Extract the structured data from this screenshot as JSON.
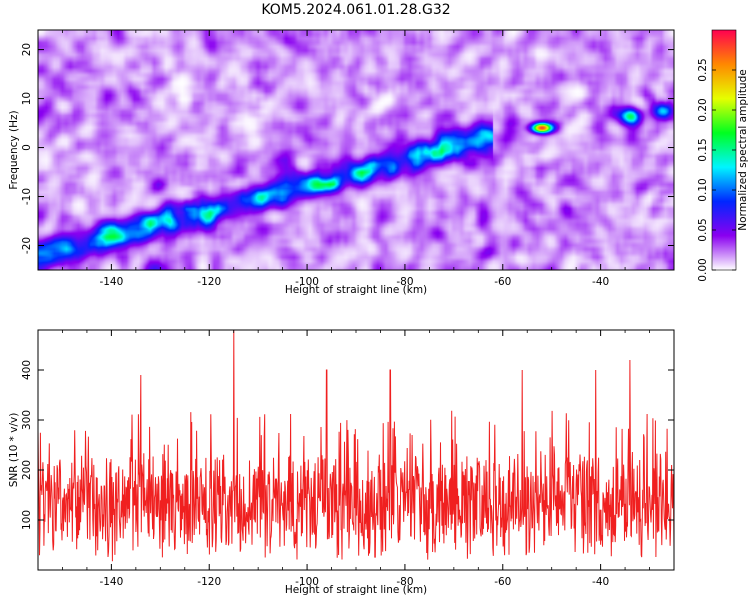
{
  "title": "KOM5.2024.061.01.28.G32",
  "chart_data": [
    {
      "type": "heatmap",
      "xlabel": "Height of straight line (km)",
      "ylabel": "Frequency (Hz)",
      "xlim": [
        -155,
        -25
      ],
      "ylim": [
        -25,
        24
      ],
      "xticks": [
        -140,
        -120,
        -100,
        -80,
        -60,
        -40
      ],
      "yticks": [
        -20,
        -10,
        0,
        10,
        20
      ],
      "colorbar": {
        "label": "Normalized spectral amplitude",
        "range": [
          0.0,
          0.3
        ],
        "ticks": [
          0.0,
          0.05,
          0.1,
          0.15,
          0.2,
          0.25
        ],
        "tick_labels": [
          "0.00",
          "0.05",
          "0.10",
          "0.15",
          "0.20",
          "0.25"
        ],
        "colors": [
          "#ffffff",
          "#8a00f0",
          "#0026ff",
          "#00f5ff",
          "#00ff20",
          "#e6ff00",
          "#ff8800",
          "#ff0050"
        ]
      },
      "features": {
        "diagonal_ridge": {
          "from": [
            -155,
            -22
          ],
          "to": [
            -65,
            1.5
          ],
          "peak_amplitude": 0.18
        },
        "isolated_peak": {
          "x": -52,
          "y": 4,
          "amplitude": 0.27
        },
        "right_blobs": [
          {
            "x": -34,
            "y": 6.5,
            "amplitude": 0.16
          },
          {
            "x": -27,
            "y": 7.5,
            "amplitude": 0.12
          }
        ],
        "background_amplitude_range": [
          0.0,
          0.06
        ]
      }
    },
    {
      "type": "line",
      "xlabel": "Height of straight line (km)",
      "ylabel": "SNR (10 * v/v)",
      "xlim": [
        -155,
        -25
      ],
      "ylim": [
        0,
        480
      ],
      "xticks": [
        -140,
        -120,
        -100,
        -80,
        -60,
        -40
      ],
      "yticks": [
        100,
        200,
        300,
        400
      ],
      "line_color": "#f02020",
      "series_summary": {
        "baseline": 130,
        "typical_max": 300,
        "max": {
          "x": -115,
          "y": 480
        },
        "notable_peaks": [
          {
            "x": -134,
            "y": 390
          },
          {
            "x": -96,
            "y": 400
          },
          {
            "x": -83,
            "y": 400
          },
          {
            "x": -56,
            "y": 400
          },
          {
            "x": -41,
            "y": 400
          },
          {
            "x": -34,
            "y": 420
          }
        ]
      }
    }
  ]
}
